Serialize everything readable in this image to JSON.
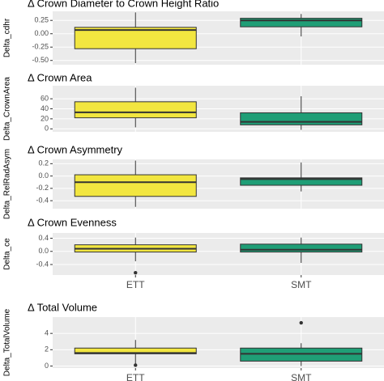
{
  "chart_data": [
    {
      "type": "box",
      "title": "Δ Crown Diameter to Crown Height Ratio",
      "y_label": "Delta_cdhr",
      "categories": [
        null,
        null
      ],
      "colors": [
        "#f2e640",
        "#1f9e76"
      ],
      "boxes": [
        {
          "min": -0.55,
          "q1": -0.28,
          "median": 0.07,
          "q3": 0.12,
          "max": 0.4,
          "outliers": []
        },
        {
          "min": -0.05,
          "q1": 0.13,
          "median": 0.25,
          "q3": 0.29,
          "max": 0.37,
          "outliers": []
        }
      ],
      "ylim": [
        -0.58,
        0.42
      ],
      "yticks": [
        {
          "value": -0.5,
          "label": "-0.50"
        },
        -0.25,
        {
          "value": 0,
          "label": "0.00"
        },
        0.25
      ],
      "grid": true
    },
    {
      "type": "box",
      "title": "Δ Crown Area",
      "y_label": "Delta_CrownArea",
      "categories": [
        null,
        null
      ],
      "colors": [
        "#f2e640",
        "#1f9e76"
      ],
      "boxes": [
        {
          "min": 3,
          "q1": 22,
          "median": 33,
          "q3": 54,
          "max": 82,
          "outliers": []
        },
        {
          "min": -2,
          "q1": 8,
          "median": 14,
          "q3": 32,
          "max": 65,
          "outliers": []
        }
      ],
      "ylim": [
        -6,
        86
      ],
      "yticks": [
        0,
        20,
        40,
        60
      ],
      "grid": true
    },
    {
      "type": "box",
      "title": "Δ Crown Asymmetry",
      "y_label": "Delta_RelRadAsym",
      "categories": [
        null,
        null
      ],
      "colors": [
        "#f2e640",
        "#1f9e76"
      ],
      "boxes": [
        {
          "min": -0.5,
          "q1": -0.33,
          "median": -0.1,
          "q3": 0.02,
          "max": 0.25,
          "outliers": []
        },
        {
          "min": -0.25,
          "q1": -0.15,
          "median": -0.05,
          "q3": -0.03,
          "max": 0.22,
          "outliers": []
        }
      ],
      "ylim": [
        -0.53,
        0.27
      ],
      "yticks": [
        -0.4,
        -0.2,
        {
          "value": 0,
          "label": "0.0"
        },
        0.2
      ],
      "grid": true
    },
    {
      "type": "box",
      "title": "Δ Crown Evenness",
      "y_label": "Delta_ce",
      "categories": [
        "ETT",
        "SMT"
      ],
      "colors": [
        "#f2e640",
        "#1f9e76"
      ],
      "boxes": [
        {
          "min": -0.3,
          "q1": -0.02,
          "median": 0.08,
          "q3": 0.2,
          "max": 0.42,
          "outliers": [
            -0.65
          ]
        },
        {
          "min": -0.35,
          "q1": -0.02,
          "median": 0.05,
          "q3": 0.22,
          "max": 0.42,
          "outliers": []
        }
      ],
      "ylim": [
        -0.72,
        0.56
      ],
      "yticks": [
        -0.4,
        {
          "value": 0,
          "label": "0.0"
        },
        0.4
      ],
      "grid": true
    },
    {
      "type": "box",
      "title": "Δ Total Volume",
      "y_label": "Delta_TotalVolume",
      "categories": [
        "ETT",
        "SMT"
      ],
      "colors": [
        "#f2e640",
        "#1f9e76"
      ],
      "boxes": [
        {
          "min": 0,
          "q1": 1.5,
          "median": 1.6,
          "q3": 2.2,
          "max": 3.2,
          "outliers": [
            0.1
          ]
        },
        {
          "min": 0,
          "q1": 0.6,
          "median": 1.5,
          "q3": 2.2,
          "max": 2.8,
          "outliers": [
            5.3
          ]
        }
      ],
      "ylim": [
        -0.25,
        6
      ],
      "yticks": [
        0,
        2,
        4
      ],
      "grid": true
    }
  ]
}
